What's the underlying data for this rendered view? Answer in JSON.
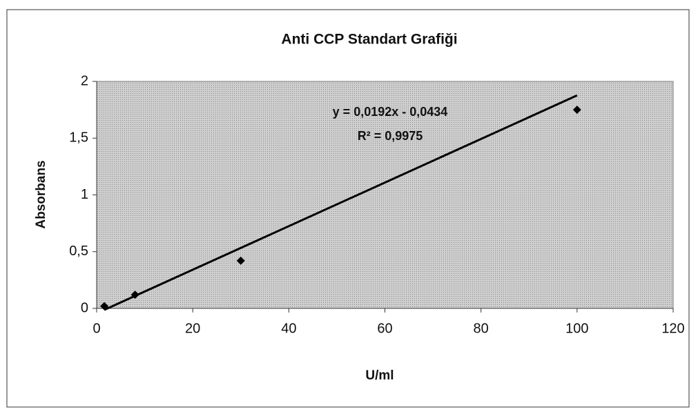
{
  "chart_data": {
    "type": "scatter",
    "title": "Anti CCP Standart Grafiği",
    "x_label": "U/ml",
    "y_label": "Absorbans",
    "x": [
      1.6,
      8,
      30,
      100
    ],
    "values": [
      0.02,
      0.12,
      0.42,
      1.75
    ],
    "color": "#000000",
    "trendline": {
      "slope": 0.0192,
      "intercept": -0.0434,
      "equation": "y = 0,0192x - 0,0434",
      "r2": "R² = 0,9975"
    },
    "xlim": [
      0,
      120
    ],
    "xticks": [
      0,
      20,
      40,
      60,
      80,
      100,
      120
    ],
    "ylim": [
      0,
      2
    ],
    "yticks": [
      0,
      {
        "value": 0.5,
        "label": "0,5"
      },
      1,
      {
        "value": 1.5,
        "label": "1,5"
      },
      2
    ],
    "plot_color": "#bdbdbd"
  }
}
